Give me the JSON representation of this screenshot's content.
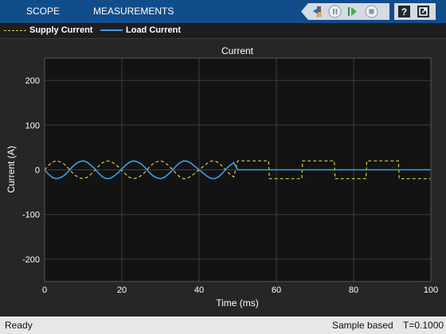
{
  "toolbar": {
    "tabs": [
      {
        "label": "SCOPE"
      },
      {
        "label": "MEASUREMENTS"
      }
    ],
    "buttons": [
      "highlight-block-icon",
      "pause-icon",
      "step-forward-icon",
      "stop-icon",
      "help-icon",
      "undock-icon"
    ]
  },
  "legend": {
    "items": [
      {
        "label": "Supply Current",
        "color": "#d8c84a",
        "style": "dashed"
      },
      {
        "label": "Load Current",
        "color": "#3aa0e8",
        "style": "solid"
      }
    ]
  },
  "chart_data": {
    "type": "line",
    "title": "Current",
    "xlabel": "Time (ms)",
    "ylabel": "Current (A)",
    "xlim": [
      0,
      100
    ],
    "ylim": [
      -250,
      250
    ],
    "xticks": [
      0,
      20,
      40,
      60,
      80,
      100
    ],
    "yticks": [
      200,
      100,
      0,
      -100,
      -200
    ],
    "grid": true,
    "series": [
      {
        "name": "Supply Current",
        "color": "#d8c84a",
        "style": "dashed",
        "x": [
          0,
          1,
          2,
          3,
          4,
          5,
          6,
          7,
          8,
          9,
          10,
          11,
          12,
          13,
          14,
          15,
          16,
          17,
          18,
          19,
          20,
          21,
          22,
          23,
          24,
          25,
          26,
          27,
          28,
          29,
          30,
          31,
          32,
          33,
          34,
          35,
          36,
          37,
          38,
          39,
          40,
          41,
          42,
          43,
          44,
          45,
          46,
          47,
          48,
          49,
          50,
          50.2,
          58,
          58.2,
          66.6,
          66.8,
          75,
          75.2,
          83.2,
          83.4,
          91.6,
          91.8,
          100
        ],
        "y": [
          0,
          10,
          17,
          20,
          18,
          13,
          5,
          -5,
          -13,
          -18,
          -20,
          -17,
          -10,
          -2,
          8,
          16,
          20,
          19,
          14,
          7,
          -2,
          -10,
          -17,
          -20,
          -18,
          -13,
          -5,
          5,
          13,
          18,
          20,
          17,
          10,
          2,
          -8,
          -16,
          -20,
          -19,
          -14,
          -7,
          0,
          7,
          14,
          19,
          20,
          16,
          8,
          -2,
          -10,
          -16,
          20,
          20,
          20,
          -20,
          -20,
          20,
          20,
          -20,
          -20,
          20,
          20,
          -20,
          -20
        ]
      },
      {
        "name": "Load Current",
        "color": "#3aa0e8",
        "style": "solid",
        "x": [
          0,
          1,
          2,
          3,
          4,
          5,
          6,
          7,
          8,
          9,
          10,
          11,
          12,
          13,
          14,
          15,
          16,
          17,
          18,
          19,
          20,
          21,
          22,
          23,
          24,
          25,
          26,
          27,
          28,
          29,
          30,
          31,
          32,
          33,
          34,
          35,
          36,
          37,
          38,
          39,
          40,
          41,
          42,
          43,
          44,
          45,
          46,
          47,
          48,
          49,
          50,
          100
        ],
        "y": [
          0,
          -10,
          -17,
          -20,
          -18,
          -13,
          -5,
          5,
          13,
          18,
          20,
          17,
          10,
          2,
          -8,
          -16,
          -20,
          -19,
          -14,
          -7,
          2,
          10,
          17,
          20,
          18,
          13,
          5,
          -5,
          -13,
          -18,
          -20,
          -17,
          -10,
          -2,
          8,
          16,
          20,
          19,
          14,
          7,
          0,
          -7,
          -14,
          -19,
          -20,
          -16,
          -8,
          2,
          10,
          16,
          0,
          0
        ]
      }
    ]
  },
  "status": {
    "left": "Ready",
    "mode": "Sample based",
    "time": "T=0.1000"
  }
}
